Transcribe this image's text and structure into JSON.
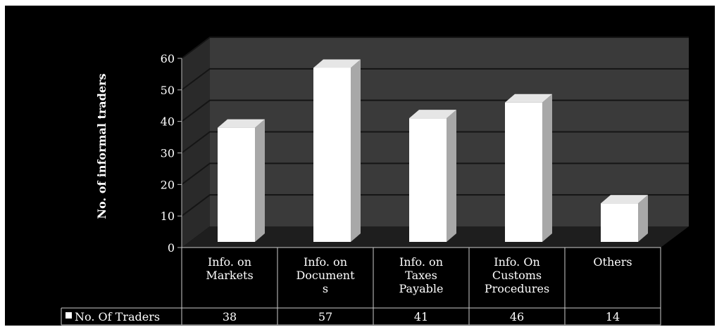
{
  "chart_data": {
    "type": "bar",
    "title": "",
    "ylabel": "No.  of  informal traders",
    "xlabel": "",
    "ylim": [
      0,
      60
    ],
    "yticks": [
      0,
      10,
      20,
      30,
      40,
      50,
      60
    ],
    "grid": true,
    "three_d": true,
    "legend_position": "data-table-left",
    "categories": [
      [
        "Info. on",
        "Markets"
      ],
      [
        "Info. on",
        "Document",
        "s"
      ],
      [
        "Info. on",
        "Taxes",
        "Payable"
      ],
      [
        "Info. On",
        "Customs",
        "Procedures"
      ],
      [
        "Others"
      ]
    ],
    "series": [
      {
        "name": "No. Of Traders",
        "values": [
          38,
          57,
          41,
          46,
          14
        ]
      }
    ],
    "colors": {
      "background": "#000000",
      "wall": "#3a3a3a",
      "side_wall": "#2a2a2a",
      "floor": "#1e1e1e",
      "bar_front": "#ffffff",
      "bar_side": "#a8a8a8",
      "bar_top": "#e6e6e6",
      "text": "#ffffff",
      "grid": "#151515"
    }
  }
}
